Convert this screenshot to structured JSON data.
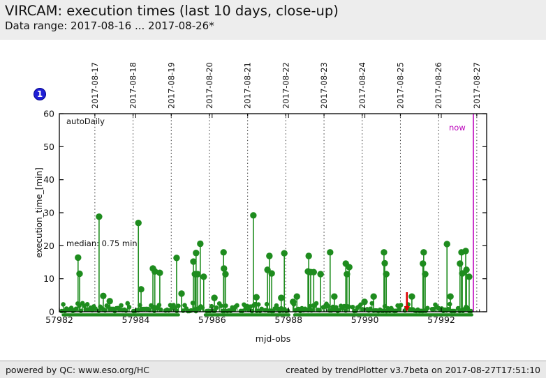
{
  "header": {
    "title": "VIRCAM: execution times (last 10 days, close-up)",
    "subtitle": "Data range: 2017-08-16 ... 2017-08-26*"
  },
  "badge": {
    "label": "1"
  },
  "footer": {
    "left": "powered by QC: www.eso.org/HC",
    "right": "created by trendPlotter v3.7beta on 2017-08-27T17:51:10"
  },
  "chart_data": {
    "type": "scatter",
    "subtype": "stem-lollipop",
    "title": "VIRCAM: execution times (last 10 days, close-up)",
    "xlabel": "mjd-obs",
    "ylabel": "execution_time_[min]",
    "series_label": "autoDaily",
    "median_annotation": "median: 0.75 min",
    "median_min": 0.75,
    "now_label": "now",
    "now_mjd": 57992.84,
    "red_arrow_mjd": 57991.1,
    "x_axis": {
      "min": 57982,
      "max": 57993.2,
      "major_ticks": [
        57982,
        57984,
        57986,
        57988,
        57990,
        57992
      ],
      "major_tick_labels": [
        "57982",
        "57984",
        "57986",
        "57988",
        "57990",
        "57992"
      ],
      "minor_ticks": [
        57983,
        57985,
        57987,
        57989,
        57991,
        57993
      ]
    },
    "y_axis": {
      "min": 0,
      "max": 60,
      "ticks": [
        0,
        10,
        20,
        30,
        40,
        50,
        60
      ]
    },
    "grid": "vertical dotted lines at each top-axis date",
    "legend_position": "none",
    "top_axis_dates": [
      {
        "label": "2017-08-17",
        "mjd": 57982.93
      },
      {
        "label": "2017-08-18",
        "mjd": 57983.93
      },
      {
        "label": "2017-08-19",
        "mjd": 57984.93
      },
      {
        "label": "2017-08-20",
        "mjd": 57985.93
      },
      {
        "label": "2017-08-21",
        "mjd": 57986.93
      },
      {
        "label": "2017-08-22",
        "mjd": 57987.93
      },
      {
        "label": "2017-08-23",
        "mjd": 57988.93
      },
      {
        "label": "2017-08-24",
        "mjd": 57989.93
      },
      {
        "label": "2017-08-25",
        "mjd": 57990.93
      },
      {
        "label": "2017-08-26",
        "mjd": 57991.93
      },
      {
        "label": "2017-08-27",
        "mjd": 57992.93
      }
    ],
    "spikes": [
      [
        57982.49,
        16.4
      ],
      [
        57982.53,
        11.5
      ],
      [
        57983.04,
        28.8
      ],
      [
        57983.15,
        4.8
      ],
      [
        57983.32,
        3.2
      ],
      [
        57984.07,
        26.9
      ],
      [
        57984.14,
        6.8
      ],
      [
        57984.45,
        13.1
      ],
      [
        57984.5,
        12.2
      ],
      [
        57984.63,
        11.8
      ],
      [
        57985.07,
        16.3
      ],
      [
        57985.2,
        5.5
      ],
      [
        57985.51,
        15.2
      ],
      [
        57985.55,
        11.4
      ],
      [
        57985.58,
        17.8
      ],
      [
        57985.62,
        11.4
      ],
      [
        57985.69,
        20.6
      ],
      [
        57985.78,
        10.6
      ],
      [
        57986.06,
        4.2
      ],
      [
        57986.3,
        18.0
      ],
      [
        57986.31,
        13.1
      ],
      [
        57986.35,
        11.4
      ],
      [
        57987.08,
        29.2
      ],
      [
        57987.16,
        4.4
      ],
      [
        57987.45,
        12.7
      ],
      [
        57987.5,
        16.9
      ],
      [
        57987.56,
        11.6
      ],
      [
        57987.81,
        4.2
      ],
      [
        57987.89,
        17.7
      ],
      [
        57988.12,
        3.0
      ],
      [
        57988.22,
        4.6
      ],
      [
        57988.51,
        12.2
      ],
      [
        57988.53,
        16.9
      ],
      [
        57988.58,
        12.0
      ],
      [
        57988.66,
        12.0
      ],
      [
        57988.84,
        11.4
      ],
      [
        57989.09,
        18.0
      ],
      [
        57989.2,
        4.6
      ],
      [
        57989.5,
        14.6
      ],
      [
        57989.53,
        11.4
      ],
      [
        57989.59,
        13.5
      ],
      [
        57989.99,
        3.0
      ],
      [
        57990.23,
        4.6
      ],
      [
        57990.5,
        18.0
      ],
      [
        57990.52,
        14.7
      ],
      [
        57990.56,
        11.4
      ],
      [
        57991.23,
        4.6
      ],
      [
        57991.52,
        14.6
      ],
      [
        57991.54,
        18.0
      ],
      [
        57991.58,
        11.4
      ],
      [
        57992.15,
        20.5
      ],
      [
        57992.24,
        4.6
      ],
      [
        57992.49,
        14.6
      ],
      [
        57992.53,
        18.0
      ],
      [
        57992.55,
        11.6
      ],
      [
        57992.64,
        18.4
      ],
      [
        57992.66,
        12.7
      ],
      [
        57992.73,
        10.6
      ]
    ],
    "baseline_segments": [
      {
        "start": 57982.06,
        "end": 57982.95,
        "min": 0.2,
        "max": 2.6
      },
      {
        "start": 57983.03,
        "end": 57983.84,
        "min": 0.2,
        "max": 2.6
      },
      {
        "start": 57983.94,
        "end": 57984.69,
        "min": 0.2,
        "max": 2.2
      },
      {
        "start": 57984.78,
        "end": 57985.14,
        "min": 0.2,
        "max": 2.4
      },
      {
        "start": 57985.24,
        "end": 57985.77,
        "min": 0.2,
        "max": 2.8
      },
      {
        "start": 57985.86,
        "end": 57986.13,
        "min": 0.2,
        "max": 2.4
      },
      {
        "start": 57986.19,
        "end": 57986.68,
        "min": 0.2,
        "max": 2.6
      },
      {
        "start": 57986.75,
        "end": 57987.32,
        "min": 0.2,
        "max": 2.6
      },
      {
        "start": 57987.39,
        "end": 57988.01,
        "min": 0.2,
        "max": 2.4
      },
      {
        "start": 57988.14,
        "end": 57988.82,
        "min": 0.2,
        "max": 2.6
      },
      {
        "start": 57988.91,
        "end": 57989.59,
        "min": 0.2,
        "max": 2.4
      },
      {
        "start": 57989.68,
        "end": 57989.95,
        "min": 0.2,
        "max": 2.2
      },
      {
        "start": 57990.06,
        "end": 57990.98,
        "min": 0.2,
        "max": 2.6
      },
      {
        "start": 57991.05,
        "end": 57991.67,
        "min": 0.2,
        "max": 2.4
      },
      {
        "start": 57991.76,
        "end": 57992.37,
        "min": 0.2,
        "max": 2.6
      },
      {
        "start": 57992.44,
        "end": 57992.8,
        "min": 0.2,
        "max": 2.4
      }
    ],
    "low_band_segments": [
      [
        57982.06,
        57985.16
      ],
      [
        57985.78,
        57988.05
      ],
      [
        57988.12,
        57992.84
      ]
    ],
    "colors": {
      "data": "#1e8c1e",
      "now": "#bb00bb",
      "arrow": "#dd0000",
      "badge": "#1f1fd6",
      "grid": "#333333"
    }
  }
}
